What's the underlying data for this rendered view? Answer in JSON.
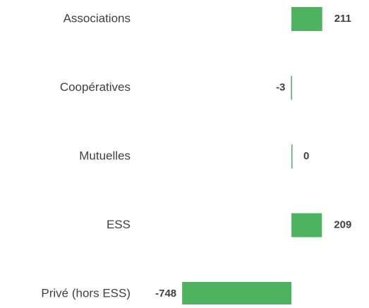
{
  "chart_data": {
    "type": "bar",
    "orientation": "horizontal",
    "categories": [
      "Associations",
      "Coopératives",
      "Mutuelles",
      "ESS",
      "Privé (hors ESS)"
    ],
    "values": [
      211,
      -3,
      0,
      209,
      -748
    ],
    "color": "#4db35e",
    "xlim": [
      -800,
      250
    ]
  }
}
